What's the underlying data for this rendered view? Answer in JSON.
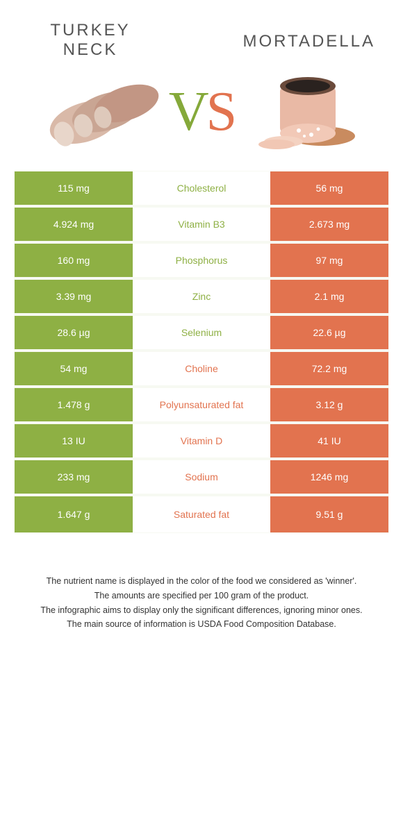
{
  "colors": {
    "green": "#8eb044",
    "orange": "#e2734f",
    "row_border": "#f7f9f2"
  },
  "left_food": {
    "title": "Turkey neck"
  },
  "right_food": {
    "title": "Mortadella"
  },
  "vs_label": {
    "v": "V",
    "s": "S"
  },
  "rows": [
    {
      "left_value": "115 mg",
      "nutrient": "Cholesterol",
      "right_value": "56 mg",
      "winner": "left"
    },
    {
      "left_value": "4.924 mg",
      "nutrient": "Vitamin B3",
      "right_value": "2.673 mg",
      "winner": "left"
    },
    {
      "left_value": "160 mg",
      "nutrient": "Phosphorus",
      "right_value": "97 mg",
      "winner": "left"
    },
    {
      "left_value": "3.39 mg",
      "nutrient": "Zinc",
      "right_value": "2.1 mg",
      "winner": "left"
    },
    {
      "left_value": "28.6 µg",
      "nutrient": "Selenium",
      "right_value": "22.6 µg",
      "winner": "left"
    },
    {
      "left_value": "54 mg",
      "nutrient": "Choline",
      "right_value": "72.2 mg",
      "winner": "right"
    },
    {
      "left_value": "1.478 g",
      "nutrient": "Polyunsaturated fat",
      "right_value": "3.12 g",
      "winner": "right"
    },
    {
      "left_value": "13 IU",
      "nutrient": "Vitamin D",
      "right_value": "41 IU",
      "winner": "right"
    },
    {
      "left_value": "233 mg",
      "nutrient": "Sodium",
      "right_value": "1246 mg",
      "winner": "right"
    },
    {
      "left_value": "1.647 g",
      "nutrient": "Saturated fat",
      "right_value": "9.51 g",
      "winner": "right"
    }
  ],
  "footnotes": [
    "The nutrient name is displayed in the color of the food we considered as 'winner'.",
    "The amounts are specified per 100 gram of the product.",
    "The infographic aims to display only the significant differences, ignoring minor ones.",
    "The main source of information is USDA Food Composition Database."
  ]
}
